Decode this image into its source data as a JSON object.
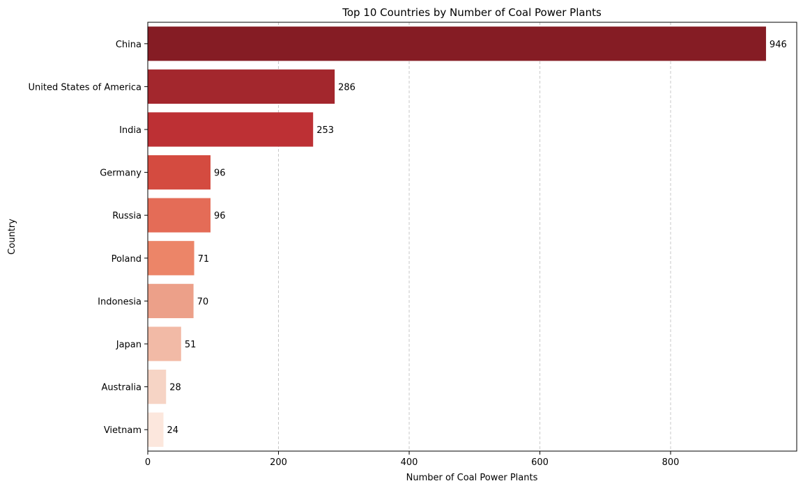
{
  "chart_data": {
    "type": "bar",
    "orientation": "horizontal",
    "title": "Top 10 Countries by Number of Coal Power Plants",
    "xlabel": "Number of Coal Power Plants",
    "ylabel": "Country",
    "categories": [
      "China",
      "United States of America",
      "India",
      "Germany",
      "Russia",
      "Poland",
      "Indonesia",
      "Japan",
      "Australia",
      "Vietnam"
    ],
    "values": [
      946,
      286,
      253,
      96,
      96,
      71,
      70,
      51,
      28,
      24
    ],
    "data_labels": [
      "946",
      "286",
      "253",
      "96",
      "96",
      "71",
      "70",
      "51",
      "28",
      "24"
    ],
    "xlim": [
      0,
      993
    ],
    "xticks": [
      0,
      200,
      400,
      600,
      800
    ],
    "xtick_labels": [
      "0",
      "200",
      "400",
      "600",
      "800"
    ],
    "grid": "x-dashed",
    "colors": [
      "#851c24",
      "#a3272d",
      "#bd3034",
      "#d44b40",
      "#e46c57",
      "#ec8568",
      "#eca089",
      "#f2baa6",
      "#f6d4c5",
      "#fce7dd"
    ],
    "legend": "none"
  }
}
